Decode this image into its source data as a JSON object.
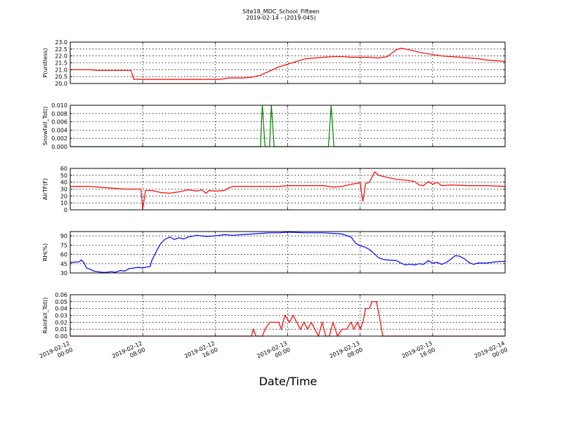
{
  "figure": {
    "title": "Site18_MDC_School_Fifteen",
    "subtitle": "2019-02-14 - (2019-045)",
    "xlabel": "Date/Time"
  },
  "chart_data": {
    "type": "line",
    "x_ticks": [
      {
        "t": 0,
        "label": [
          "2019-02-12",
          "00:00"
        ]
      },
      {
        "t": 8,
        "label": [
          "2019-02-12",
          "08:00"
        ]
      },
      {
        "t": 16,
        "label": [
          "2019-02-12",
          "16:00"
        ]
      },
      {
        "t": 24,
        "label": [
          "2019-02-13",
          "00:00"
        ]
      },
      {
        "t": 32,
        "label": [
          "2019-02-13",
          "08:00"
        ]
      },
      {
        "t": 40,
        "label": [
          "2019-02-13",
          "16:00"
        ]
      },
      {
        "t": 48,
        "label": [
          "2019-02-14",
          "00:00"
        ]
      }
    ],
    "xlim": [
      0,
      48
    ],
    "x_unit": "hours from 2019-02-12 00:00",
    "grid": true,
    "panels": [
      {
        "ylabel": "P(unitless)",
        "ylim": [
          20.0,
          23.0
        ],
        "yticks": [
          "20.0",
          "20.5",
          "21.0",
          "21.5",
          "22.0",
          "22.5",
          "23.0"
        ],
        "ytick_values": [
          20.0,
          20.5,
          21.0,
          21.5,
          22.0,
          22.5,
          23.0
        ],
        "color": "#ff0000",
        "points": [
          [
            0,
            21.0
          ],
          [
            2,
            21.0
          ],
          [
            3,
            20.95
          ],
          [
            6,
            20.95
          ],
          [
            6.7,
            20.95
          ],
          [
            7,
            20.3
          ],
          [
            10,
            20.3
          ],
          [
            14,
            20.3
          ],
          [
            16.5,
            20.3
          ],
          [
            17,
            20.35
          ],
          [
            17.5,
            20.4
          ],
          [
            19,
            20.4
          ],
          [
            20,
            20.45
          ],
          [
            21,
            20.6
          ],
          [
            22,
            20.9
          ],
          [
            23,
            21.2
          ],
          [
            24,
            21.4
          ],
          [
            25,
            21.6
          ],
          [
            26,
            21.8
          ],
          [
            27,
            21.85
          ],
          [
            28,
            21.9
          ],
          [
            29,
            21.95
          ],
          [
            30,
            21.95
          ],
          [
            31,
            21.9
          ],
          [
            33,
            21.9
          ],
          [
            34,
            21.85
          ],
          [
            35,
            21.95
          ],
          [
            35.5,
            22.2
          ],
          [
            36,
            22.45
          ],
          [
            36.5,
            22.55
          ],
          [
            37,
            22.5
          ],
          [
            38,
            22.35
          ],
          [
            39,
            22.2
          ],
          [
            40,
            22.1
          ],
          [
            41,
            22.0
          ],
          [
            43,
            21.9
          ],
          [
            45,
            21.8
          ],
          [
            46,
            21.7
          ],
          [
            47,
            21.65
          ],
          [
            48,
            21.6
          ]
        ]
      },
      {
        "ylabel": "Snowfall_Tot()",
        "ylim": [
          0.0,
          0.01
        ],
        "yticks": [
          "0.000",
          "0.002",
          "0.004",
          "0.006",
          "0.008",
          "0.010"
        ],
        "ytick_values": [
          0.0,
          0.002,
          0.004,
          0.006,
          0.008,
          0.01
        ],
        "color": "#008000",
        "points": [
          [
            0,
            0
          ],
          [
            21,
            0
          ],
          [
            21.2,
            0.01
          ],
          [
            21.5,
            0
          ],
          [
            22,
            0
          ],
          [
            22.2,
            0.01
          ],
          [
            22.5,
            0
          ],
          [
            28.5,
            0
          ],
          [
            28.8,
            0.01
          ],
          [
            29.1,
            0
          ],
          [
            48,
            0
          ]
        ]
      },
      {
        "ylabel": "AirTF(F)",
        "ylim": [
          0,
          60
        ],
        "yticks": [
          "0",
          "10",
          "20",
          "30",
          "40",
          "50",
          "60"
        ],
        "ytick_values": [
          0,
          10,
          20,
          30,
          40,
          50,
          60
        ],
        "color": "#ff0000",
        "points": [
          [
            0,
            34
          ],
          [
            2,
            34
          ],
          [
            3,
            33
          ],
          [
            5,
            31
          ],
          [
            6,
            30
          ],
          [
            7.8,
            30
          ],
          [
            8,
            1
          ],
          [
            8.3,
            28
          ],
          [
            9,
            28
          ],
          [
            10,
            25
          ],
          [
            11,
            24
          ],
          [
            12,
            26
          ],
          [
            13,
            29
          ],
          [
            14,
            27
          ],
          [
            14.5,
            29
          ],
          [
            15,
            24
          ],
          [
            15.3,
            28
          ],
          [
            16,
            27
          ],
          [
            17,
            28
          ],
          [
            17.5,
            32
          ],
          [
            18,
            34
          ],
          [
            20,
            34
          ],
          [
            23,
            34
          ],
          [
            24,
            35
          ],
          [
            26,
            35
          ],
          [
            28,
            35
          ],
          [
            29,
            33
          ],
          [
            30,
            34
          ],
          [
            31,
            37
          ],
          [
            32,
            39
          ],
          [
            32.3,
            12
          ],
          [
            32.6,
            38
          ],
          [
            33,
            40
          ],
          [
            33.3,
            47
          ],
          [
            33.6,
            55
          ],
          [
            34,
            50
          ],
          [
            35,
            47
          ],
          [
            36,
            44
          ],
          [
            37,
            43
          ],
          [
            38,
            41
          ],
          [
            38.5,
            36
          ],
          [
            39,
            35
          ],
          [
            39.5,
            41
          ],
          [
            40,
            37
          ],
          [
            40.5,
            40
          ],
          [
            41,
            35
          ],
          [
            42,
            36
          ],
          [
            44,
            35
          ],
          [
            46,
            35
          ],
          [
            48,
            34
          ]
        ]
      },
      {
        "ylabel": "RH(%)",
        "ylim": [
          30,
          97
        ],
        "yticks": [
          "30",
          "45",
          "60",
          "75",
          "90"
        ],
        "ytick_values": [
          30,
          45,
          60,
          75,
          90
        ],
        "color": "#0000ff",
        "points": [
          [
            0,
            47
          ],
          [
            1,
            48
          ],
          [
            1.2,
            51
          ],
          [
            1.5,
            47
          ],
          [
            1.8,
            38
          ],
          [
            2.2,
            36
          ],
          [
            2.6,
            33
          ],
          [
            3,
            32
          ],
          [
            3.5,
            31
          ],
          [
            4,
            31
          ],
          [
            4.5,
            32
          ],
          [
            5,
            31
          ],
          [
            5.5,
            34
          ],
          [
            6,
            33
          ],
          [
            6.5,
            37
          ],
          [
            7,
            38
          ],
          [
            7.5,
            39
          ],
          [
            8,
            38
          ],
          [
            8.5,
            40
          ],
          [
            8.8,
            40
          ],
          [
            9,
            50
          ],
          [
            9.5,
            65
          ],
          [
            10,
            78
          ],
          [
            10.5,
            85
          ],
          [
            11,
            88
          ],
          [
            11.5,
            84
          ],
          [
            12,
            87
          ],
          [
            12.5,
            85
          ],
          [
            13,
            88
          ],
          [
            14,
            91
          ],
          [
            15,
            89
          ],
          [
            16,
            90
          ],
          [
            17,
            92
          ],
          [
            18,
            91
          ],
          [
            19,
            92
          ],
          [
            20,
            93
          ],
          [
            21,
            94
          ],
          [
            22,
            95
          ],
          [
            23,
            95
          ],
          [
            24,
            96
          ],
          [
            26,
            95
          ],
          [
            28,
            95
          ],
          [
            29,
            94
          ],
          [
            30,
            93
          ],
          [
            31,
            88
          ],
          [
            31.5,
            78
          ],
          [
            32,
            74
          ],
          [
            32.5,
            72
          ],
          [
            33,
            68
          ],
          [
            33.5,
            62
          ],
          [
            34,
            55
          ],
          [
            34.5,
            52
          ],
          [
            35,
            51
          ],
          [
            36,
            50
          ],
          [
            36.5,
            46
          ],
          [
            37,
            43
          ],
          [
            37.5,
            44
          ],
          [
            38,
            43
          ],
          [
            38.5,
            45
          ],
          [
            39,
            44
          ],
          [
            39.5,
            50
          ],
          [
            40,
            46
          ],
          [
            40.5,
            47
          ],
          [
            41,
            44
          ],
          [
            41.5,
            47
          ],
          [
            42,
            52
          ],
          [
            42.5,
            58
          ],
          [
            43,
            57
          ],
          [
            43.5,
            53
          ],
          [
            44,
            47
          ],
          [
            44.5,
            44
          ],
          [
            45,
            46
          ],
          [
            46,
            46
          ],
          [
            47,
            48
          ],
          [
            48,
            49
          ]
        ]
      },
      {
        "ylabel": "Rainfall_Tot()",
        "ylim": [
          0.0,
          0.06
        ],
        "yticks": [
          "0.00",
          "0.01",
          "0.02",
          "0.03",
          "0.04",
          "0.05",
          "0.06"
        ],
        "ytick_values": [
          0.0,
          0.01,
          0.02,
          0.03,
          0.04,
          0.05,
          0.06
        ],
        "color": "#ff0000",
        "points": [
          [
            0,
            0
          ],
          [
            20,
            0
          ],
          [
            20.2,
            0.01
          ],
          [
            20.5,
            0
          ],
          [
            21.2,
            0
          ],
          [
            21.5,
            0.01
          ],
          [
            22,
            0.02
          ],
          [
            23,
            0.02
          ],
          [
            23.3,
            0.01
          ],
          [
            23.7,
            0.03
          ],
          [
            24.2,
            0.02
          ],
          [
            24.6,
            0.03
          ],
          [
            25,
            0.02
          ],
          [
            25.4,
            0.01
          ],
          [
            25.8,
            0.02
          ],
          [
            26.2,
            0.01
          ],
          [
            26.6,
            0.02
          ],
          [
            27,
            0.01
          ],
          [
            27.4,
            0
          ],
          [
            27.8,
            0.02
          ],
          [
            28.2,
            0
          ],
          [
            28.6,
            0
          ],
          [
            29,
            0.02
          ],
          [
            29.5,
            0
          ],
          [
            30,
            0.01
          ],
          [
            30.5,
            0.01
          ],
          [
            31,
            0.02
          ],
          [
            31.3,
            0.01
          ],
          [
            31.7,
            0.02
          ],
          [
            32,
            0.01
          ],
          [
            32.3,
            0.02
          ],
          [
            32.6,
            0.04
          ],
          [
            33,
            0.04
          ],
          [
            33.3,
            0.05
          ],
          [
            33.8,
            0.05
          ],
          [
            34.1,
            0.03
          ],
          [
            34.5,
            0
          ],
          [
            48,
            0
          ]
        ]
      }
    ]
  }
}
